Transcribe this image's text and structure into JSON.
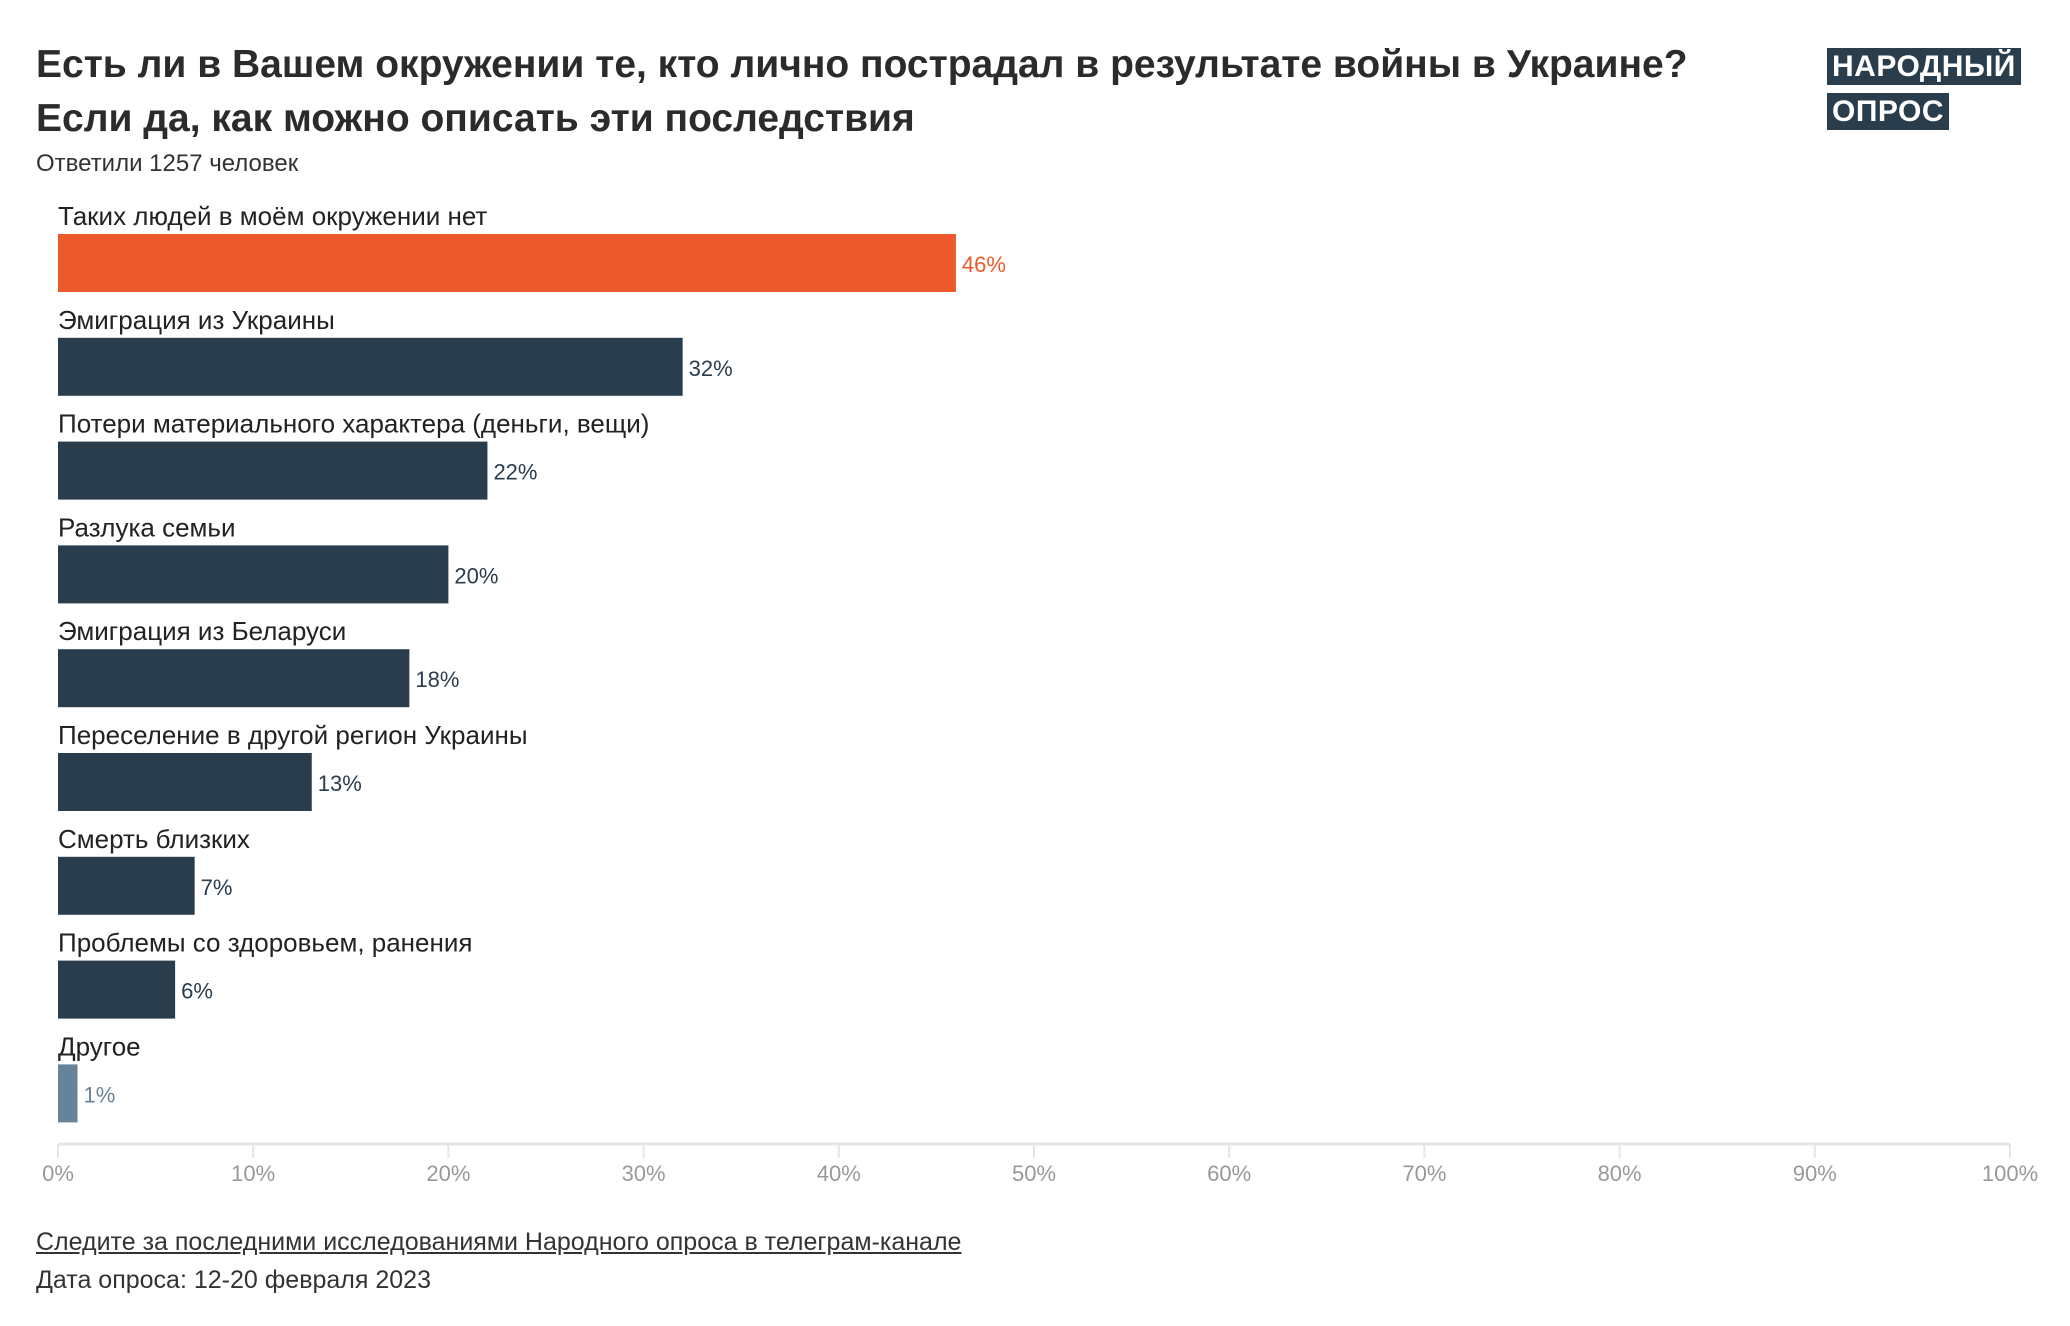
{
  "header": {
    "title_line1": "Есть ли в Вашем окружении те, кто лично пострадал в результате войны в Украине?",
    "title_line2": "Если да, как можно описать эти последствия",
    "subtitle": "Ответили 1257 человек",
    "logo_line1": "НАРОДНЫЙ",
    "logo_line2": "ОПРОС"
  },
  "footer": {
    "link": "Следите за последними исследованиями Народного опроса в телеграм-канале",
    "date": "Дата опроса: 12-20 февраля 2023"
  },
  "colors": {
    "highlight": "#ec5a2b",
    "default": "#2a3d4c",
    "other": "#67839a",
    "axis": "#e6e6e6",
    "tick_text": "#999999"
  },
  "chart_data": {
    "type": "bar",
    "orientation": "horizontal",
    "title": "Есть ли в Вашем окружении те, кто лично пострадал в результате войны в Украине? Если да, как можно описать эти последствия",
    "categories": [
      "Таких людей в моём окружении нет",
      "Эмиграция из Украины",
      "Потери материального характера (деньги, вещи)",
      "Разлука семьи",
      "Эмиграция из Беларуси",
      "Переселение в другой регион Украины",
      "Смерть близких",
      "Проблемы со здоровьем, ранения",
      "Другое"
    ],
    "values": [
      46,
      32,
      22,
      20,
      18,
      13,
      7,
      6,
      1
    ],
    "value_labels": [
      "46%",
      "32%",
      "22%",
      "20%",
      "18%",
      "13%",
      "7%",
      "6%",
      "1%"
    ],
    "bar_colors": [
      "highlight",
      "default",
      "default",
      "default",
      "default",
      "default",
      "default",
      "default",
      "other"
    ],
    "xlim": [
      0,
      100
    ],
    "xticks": [
      "0%",
      "10%",
      "20%",
      "30%",
      "40%",
      "50%",
      "60%",
      "70%",
      "80%",
      "90%",
      "100%"
    ],
    "xlabel": "",
    "ylabel": "",
    "grid": false
  }
}
